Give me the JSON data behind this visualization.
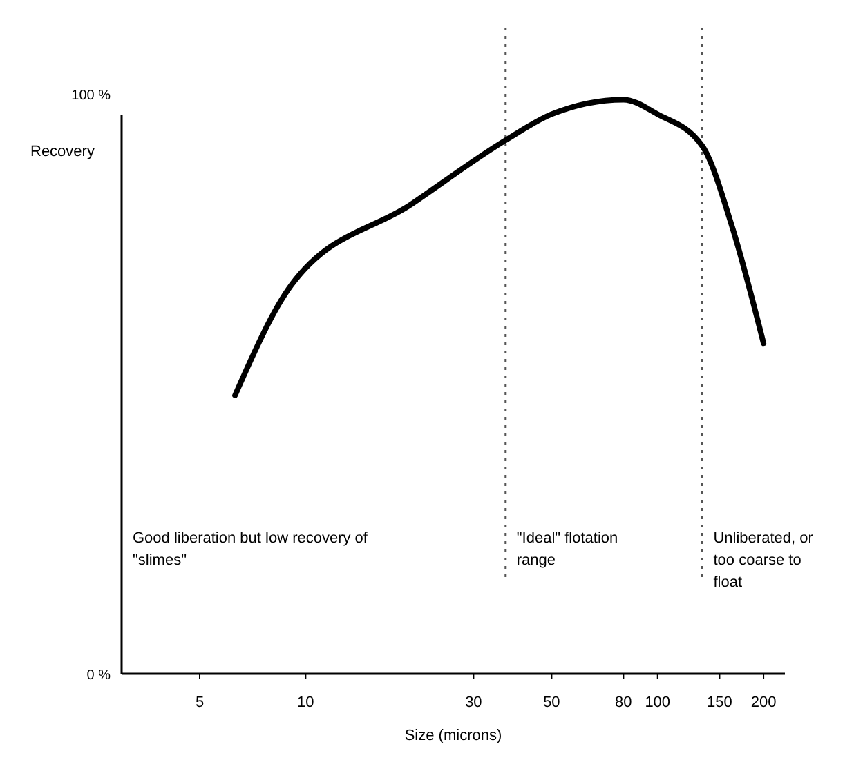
{
  "chart_data": {
    "type": "line",
    "xlabel": "Size (microns)",
    "ylabel": "Recovery",
    "log": "x",
    "x": [
      6.3,
      9.1,
      20,
      37,
      50,
      80,
      100,
      134,
      163,
      200
    ],
    "series": [
      {
        "color": "#000000",
        "values": [
          48,
          67,
          81,
          92,
          96.5,
          99,
          96.5,
          91,
          77,
          57
        ]
      }
    ],
    "xlim": [
      3,
      230
    ],
    "xticks": [
      5,
      10,
      30,
      50,
      80,
      100,
      150,
      200
    ],
    "ylim": [
      0,
      100
    ],
    "yticks": [
      {
        "value": 0,
        "label": "0 %"
      },
      {
        "value": 100,
        "label": "100 %"
      }
    ],
    "ref_lines": [
      {
        "axis": "x",
        "value": 37,
        "line_style": "dotted",
        "color": "#555555"
      },
      {
        "axis": "x",
        "value": 134,
        "line_style": "dotted",
        "color": "#555555"
      }
    ],
    "annotations": [
      "Good liberation but low recovery of \"slimes\"",
      "\"Ideal\" flotation range",
      "Unliberated, or too coarse to float"
    ],
    "grid": false,
    "marker": "none",
    "line_style": "solid"
  }
}
